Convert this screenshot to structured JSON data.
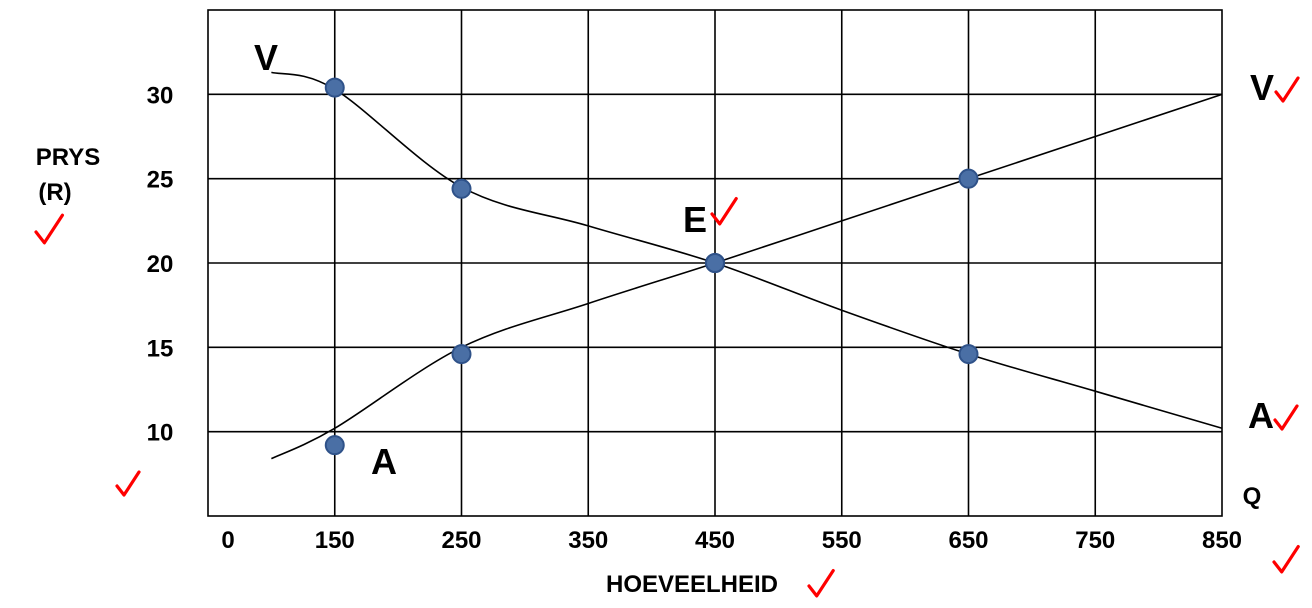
{
  "chart_data": {
    "type": "line",
    "xlabel": "HOEVEELHEID",
    "ylabel": "PRYS (R)",
    "x_axis_letter": "Q",
    "x_ticks": [
      0,
      150,
      250,
      350,
      450,
      550,
      650,
      750,
      850
    ],
    "y_ticks": [
      10,
      15,
      20,
      25,
      30
    ],
    "xlim": [
      0,
      850
    ],
    "ylim": [
      5,
      35
    ],
    "grid": true,
    "series": [
      {
        "label_start": "V",
        "label_end": "V",
        "points": [
          [
            150,
            30.4
          ],
          [
            250,
            24.4
          ],
          [
            450,
            20
          ],
          [
            650,
            14.6
          ]
        ],
        "curve": [
          [
            100,
            31.3
          ],
          [
            150,
            30.3
          ],
          [
            250,
            24.5
          ],
          [
            350,
            22.2
          ],
          [
            450,
            20
          ],
          [
            550,
            17.2
          ],
          [
            650,
            14.6
          ],
          [
            750,
            12.4
          ],
          [
            850,
            10.2
          ]
        ]
      },
      {
        "label_start": "A",
        "label_end": "A",
        "points": [
          [
            150,
            9.2
          ],
          [
            250,
            14.6
          ],
          [
            450,
            20
          ],
          [
            650,
            25
          ]
        ],
        "curve": [
          [
            100,
            8.4
          ],
          [
            150,
            10.2
          ],
          [
            250,
            15
          ],
          [
            350,
            17.6
          ],
          [
            450,
            20
          ],
          [
            550,
            22.5
          ],
          [
            650,
            25
          ],
          [
            750,
            27.5
          ],
          [
            850,
            30
          ]
        ]
      }
    ],
    "annotations": [
      {
        "text": "E",
        "x": 450,
        "y": 20
      }
    ],
    "check_mark_color": "#ff0000",
    "point_color": "#4a6fa5"
  }
}
